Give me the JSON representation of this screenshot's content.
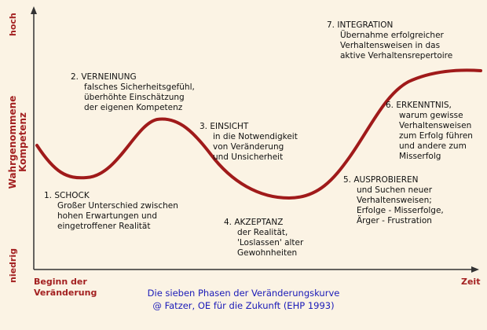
{
  "axes": {
    "y_high": "hoch",
    "y_low": "niedrig",
    "y_title_line1": "Wahrgenommene",
    "y_title_line2": "Kompetenz",
    "x_start_line1": "Beginn der",
    "x_start_line2": "Veränderung",
    "x_end": "Zeit"
  },
  "phases": [
    {
      "title": "1. SCHOCK",
      "desc": [
        "Großer Unterschied zwischen",
        "hohen Erwartungen und",
        "eingetroffener Realität"
      ]
    },
    {
      "title": "2. VERNEINUNG",
      "desc": [
        "falsches Sicherheitsgefühl,",
        "überhöhte Einschätzung",
        "der eigenen Kompetenz"
      ]
    },
    {
      "title": "3. EINSICHT",
      "desc": [
        "in die Notwendigkeit",
        "von Veränderung",
        "und Unsicherheit"
      ]
    },
    {
      "title": "4. AKZEPTANZ",
      "desc": [
        "der Realität,",
        "'Loslassen' alter",
        "Gewohnheiten"
      ]
    },
    {
      "title": "5. AUSPROBIEREN",
      "desc": [
        "und Suchen neuer",
        "Verhaltensweisen;",
        "Erfolge - Misserfolge,",
        "Ärger - Frustration"
      ]
    },
    {
      "title": "6. ERKENNTNIS,",
      "desc": [
        "warum gewisse",
        "Verhaltensweisen",
        "zum Erfolg führen",
        "und andere zum",
        "Misserfolg"
      ]
    },
    {
      "title": "7. INTEGRATION",
      "desc": [
        "Übernahme erfolgreicher",
        "Verhaltensweisen in das",
        "aktive Verhaltensrepertoire"
      ]
    }
  ],
  "caption": {
    "line1": "Die sieben Phasen der Veränderungskurve",
    "line2": "@ Fatzer, OE für die Zukunft (EHP 1993)"
  },
  "colors": {
    "curve": "#a01a1a",
    "axis": "#333333",
    "background": "#fbf3e4",
    "caption": "#1a1ab8",
    "axis_labels": "#a32121"
  }
}
